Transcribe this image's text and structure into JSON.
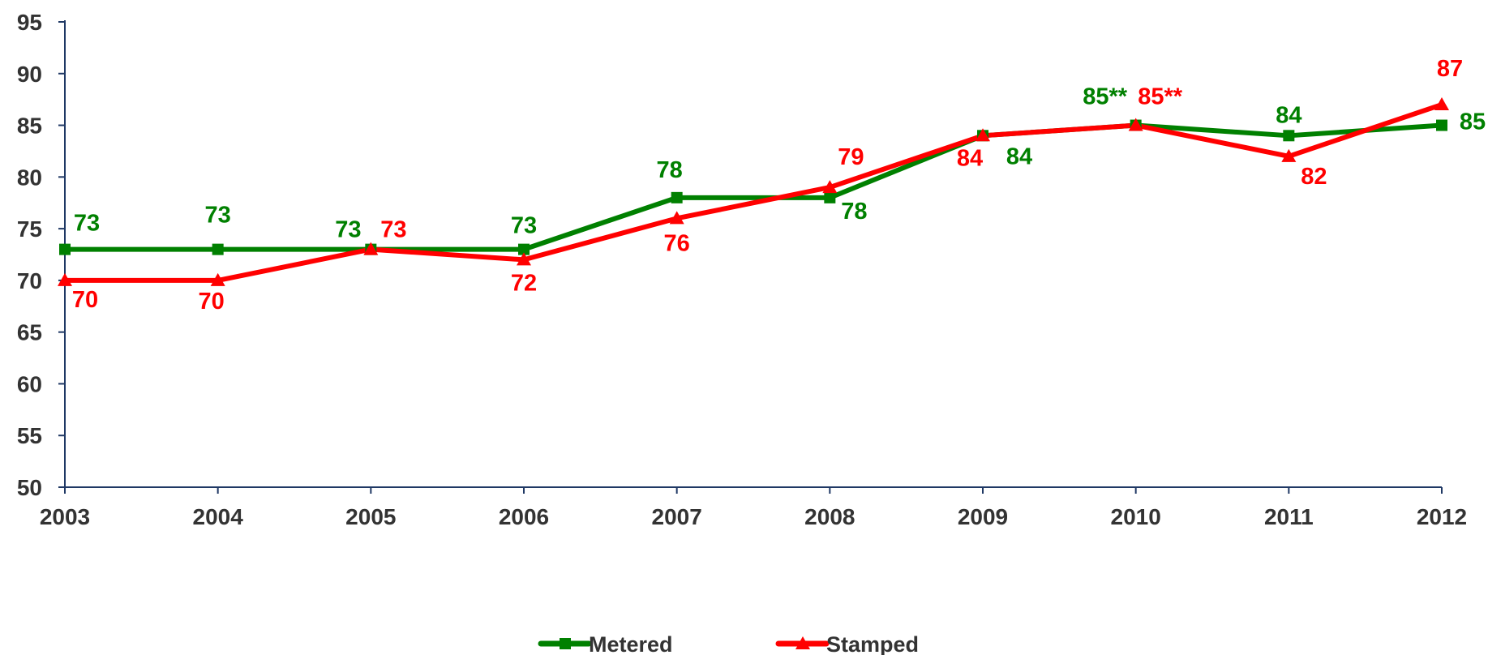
{
  "chart_data": {
    "type": "line",
    "x": [
      "2003",
      "2004",
      "2005",
      "2006",
      "2007",
      "2008",
      "2009",
      "2010",
      "2011",
      "2012"
    ],
    "ylim": [
      50,
      95
    ],
    "yticks": [
      50,
      55,
      60,
      65,
      70,
      75,
      80,
      85,
      90,
      95
    ],
    "grid": false,
    "legend_position": "bottom",
    "series": [
      {
        "name": "Metered",
        "color": "#008000",
        "marker": "square",
        "values": [
          73,
          73,
          73,
          73,
          78,
          78,
          84,
          85,
          84,
          85
        ],
        "labels": [
          "73",
          "73",
          "73",
          "73",
          "78",
          "78",
          "84",
          "85**",
          "84",
          "85"
        ]
      },
      {
        "name": "Stamped",
        "color": "#ff0000",
        "marker": "triangle",
        "values": [
          70,
          70,
          73,
          72,
          76,
          79,
          84,
          85,
          82,
          87
        ],
        "labels": [
          "70",
          "70",
          "73",
          "72",
          "76",
          "79",
          "84",
          "85**",
          "82",
          "87"
        ]
      }
    ]
  }
}
